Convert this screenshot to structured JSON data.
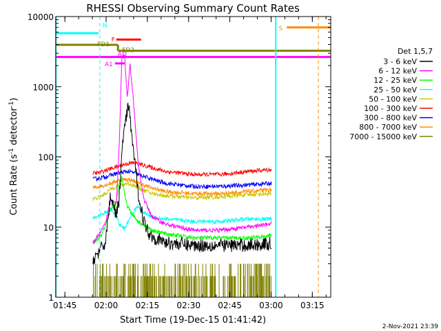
{
  "chart_data": {
    "type": "line",
    "title": "RHESSI Observing Summary Count Rates",
    "xlabel": "Start Time (19-Dec-15 01:41:42)",
    "ylabel": "Count Rate (s⁻¹ detector⁻¹)",
    "ylabel_main": "Count Rate (s",
    "ylabel_sup1": "-1",
    "ylabel_mid": " detector",
    "ylabel_sup2": "-1",
    "ylabel_end": ")",
    "x_unit": "minutes after 01:41:42",
    "xlim": [
      0,
      100
    ],
    "ylim": [
      1,
      10000
    ],
    "yscale": "log",
    "xticks": [
      {
        "label": "01:45",
        "t": 3.3
      },
      {
        "label": "02:00",
        "t": 18.3
      },
      {
        "label": "02:15",
        "t": 33.3
      },
      {
        "label": "02:30",
        "t": 48.3
      },
      {
        "label": "02:45",
        "t": 63.3
      },
      {
        "label": "03:00",
        "t": 78.3
      },
      {
        "label": "03:15",
        "t": 93.3
      }
    ],
    "yticks": [
      {
        "label": "1",
        "v": 1
      },
      {
        "label": "10",
        "v": 10
      },
      {
        "label": "100",
        "v": 100
      },
      {
        "label": "1000",
        "v": 1000
      },
      {
        "label": "10000",
        "v": 10000
      }
    ],
    "legend_title": "Det 1,5,7",
    "legend_placement": "right",
    "series": [
      {
        "name": "3 - 6 keV",
        "color": "#000000",
        "points": [
          [
            13.5,
            3.5
          ],
          [
            16,
            4.5
          ],
          [
            18,
            6
          ],
          [
            20,
            30
          ],
          [
            22,
            14
          ],
          [
            23,
            25
          ],
          [
            24.5,
            200
          ],
          [
            26.5,
            550
          ],
          [
            28,
            150
          ],
          [
            30,
            30
          ],
          [
            32,
            12
          ],
          [
            34,
            8
          ],
          [
            36,
            7
          ],
          [
            40,
            6
          ],
          [
            50,
            5.5
          ],
          [
            60,
            5.5
          ],
          [
            70,
            5.5
          ],
          [
            78.5,
            5.8
          ]
        ]
      },
      {
        "name": "6 - 12 keV",
        "color": "#ff00ff",
        "points": [
          [
            13.5,
            6
          ],
          [
            16,
            8
          ],
          [
            18,
            11
          ],
          [
            20,
            25
          ],
          [
            22,
            22
          ],
          [
            23,
            130
          ],
          [
            24,
            2500
          ],
          [
            25,
            2800
          ],
          [
            26,
            700
          ],
          [
            27,
            2000
          ],
          [
            28,
            800
          ],
          [
            29,
            250
          ],
          [
            30,
            80
          ],
          [
            32,
            25
          ],
          [
            35,
            14
          ],
          [
            40,
            11
          ],
          [
            50,
            9
          ],
          [
            60,
            9
          ],
          [
            70,
            10
          ],
          [
            78.5,
            11
          ]
        ]
      },
      {
        "name": "12 - 25 keV",
        "color": "#00ff00",
        "points": [
          [
            13.5,
            6
          ],
          [
            16,
            7
          ],
          [
            18,
            10
          ],
          [
            20,
            18
          ],
          [
            22,
            22
          ],
          [
            23,
            40
          ],
          [
            24,
            55
          ],
          [
            25,
            30
          ],
          [
            26,
            20
          ],
          [
            28,
            15
          ],
          [
            30,
            12
          ],
          [
            35,
            9
          ],
          [
            40,
            8
          ],
          [
            50,
            7
          ],
          [
            60,
            7
          ],
          [
            70,
            7
          ],
          [
            78.5,
            7.5
          ]
        ]
      },
      {
        "name": "25 - 50 keV",
        "color": "#00ffff",
        "points": [
          [
            13.5,
            13
          ],
          [
            16,
            15
          ],
          [
            18,
            16
          ],
          [
            20,
            18
          ],
          [
            22,
            15
          ],
          [
            23,
            11
          ],
          [
            24,
            10
          ],
          [
            25,
            9.5
          ],
          [
            26,
            11
          ],
          [
            27,
            14
          ],
          [
            28,
            16
          ],
          [
            29,
            18
          ],
          [
            30,
            20
          ],
          [
            32,
            16
          ],
          [
            35,
            14
          ],
          [
            40,
            13
          ],
          [
            50,
            12
          ],
          [
            60,
            12
          ],
          [
            70,
            13
          ],
          [
            78.5,
            13
          ]
        ]
      },
      {
        "name": "50 - 100 keV",
        "color": "#c8c800",
        "points": [
          [
            13.5,
            25
          ],
          [
            16,
            27
          ],
          [
            18,
            30
          ],
          [
            20,
            35
          ],
          [
            22,
            38
          ],
          [
            24,
            40
          ],
          [
            26,
            42
          ],
          [
            28,
            40
          ],
          [
            30,
            36
          ],
          [
            35,
            30
          ],
          [
            40,
            28
          ],
          [
            50,
            26
          ],
          [
            60,
            27
          ],
          [
            70,
            29
          ],
          [
            78.5,
            30
          ]
        ]
      },
      {
        "name": "100 - 300 keV",
        "color": "#ff0000",
        "points": [
          [
            13.5,
            58
          ],
          [
            16,
            60
          ],
          [
            18,
            64
          ],
          [
            20,
            68
          ],
          [
            22,
            72
          ],
          [
            24,
            76
          ],
          [
            26,
            80
          ],
          [
            28,
            82
          ],
          [
            30,
            80
          ],
          [
            35,
            70
          ],
          [
            40,
            62
          ],
          [
            50,
            56
          ],
          [
            60,
            56
          ],
          [
            70,
            62
          ],
          [
            78.5,
            66
          ]
        ]
      },
      {
        "name": "300 - 800 keV",
        "color": "#0000ff",
        "points": [
          [
            13.5,
            48
          ],
          [
            16,
            50
          ],
          [
            18,
            52
          ],
          [
            20,
            55
          ],
          [
            22,
            58
          ],
          [
            24,
            60
          ],
          [
            26,
            62
          ],
          [
            28,
            60
          ],
          [
            30,
            56
          ],
          [
            35,
            48
          ],
          [
            40,
            42
          ],
          [
            50,
            38
          ],
          [
            60,
            38
          ],
          [
            70,
            40
          ],
          [
            78.5,
            42
          ]
        ]
      },
      {
        "name": "800 - 7000 keV",
        "color": "#ff8c00",
        "points": [
          [
            13.5,
            36
          ],
          [
            16,
            38
          ],
          [
            18,
            40
          ],
          [
            20,
            42
          ],
          [
            22,
            45
          ],
          [
            24,
            47
          ],
          [
            26,
            48
          ],
          [
            28,
            46
          ],
          [
            30,
            42
          ],
          [
            35,
            36
          ],
          [
            40,
            32
          ],
          [
            50,
            30
          ],
          [
            60,
            30
          ],
          [
            70,
            32
          ],
          [
            78.5,
            34
          ]
        ]
      },
      {
        "name": "7000 - 15000 keV",
        "color": "#808000",
        "points": [
          [
            13.5,
            1.5
          ],
          [
            20,
            1.8
          ],
          [
            25,
            2.2
          ],
          [
            30,
            2
          ],
          [
            40,
            1.8
          ],
          [
            50,
            1.8
          ],
          [
            60,
            1.9
          ],
          [
            70,
            1.8
          ],
          [
            78.5,
            1.7
          ]
        ]
      }
    ],
    "flags": [
      {
        "label": "N",
        "color": "#00ffff",
        "y": 5800,
        "x_start": 0,
        "x_end": 15.5
      },
      {
        "label": "F",
        "color": "#ff0000",
        "y": 4700,
        "x_start": 22,
        "x_end": 31
      },
      {
        "label": "FD1",
        "color": "#808000",
        "y": 3950,
        "x_start": 0,
        "x_end": 22.6
      },
      {
        "label": "FD2",
        "color": "#808000",
        "y": 3250,
        "x_start": 22.6,
        "x_end": 100
      },
      {
        "label": "AD",
        "color": "#ff00ff",
        "y": 2650,
        "x_start": 0,
        "x_end": 100
      },
      {
        "label": "A1",
        "color": "#ff00ff",
        "y": 2150,
        "x_start": 21.5,
        "x_end": 25
      },
      {
        "label": "S",
        "color": "#ff8c00",
        "y": 7000,
        "x_start": 84,
        "x_end": 100
      }
    ],
    "boundaries": [
      {
        "t": 0,
        "color": "#00ffff",
        "style": "solid"
      },
      {
        "t": 16,
        "color": "#00ffff",
        "style": "dashed"
      },
      {
        "t": 80,
        "color": "#00ffff",
        "style": "solid"
      },
      {
        "t": 95.5,
        "color": "#ff8c00",
        "style": "dashed"
      }
    ]
  },
  "timestamp": "2-Nov-2021 23:39"
}
